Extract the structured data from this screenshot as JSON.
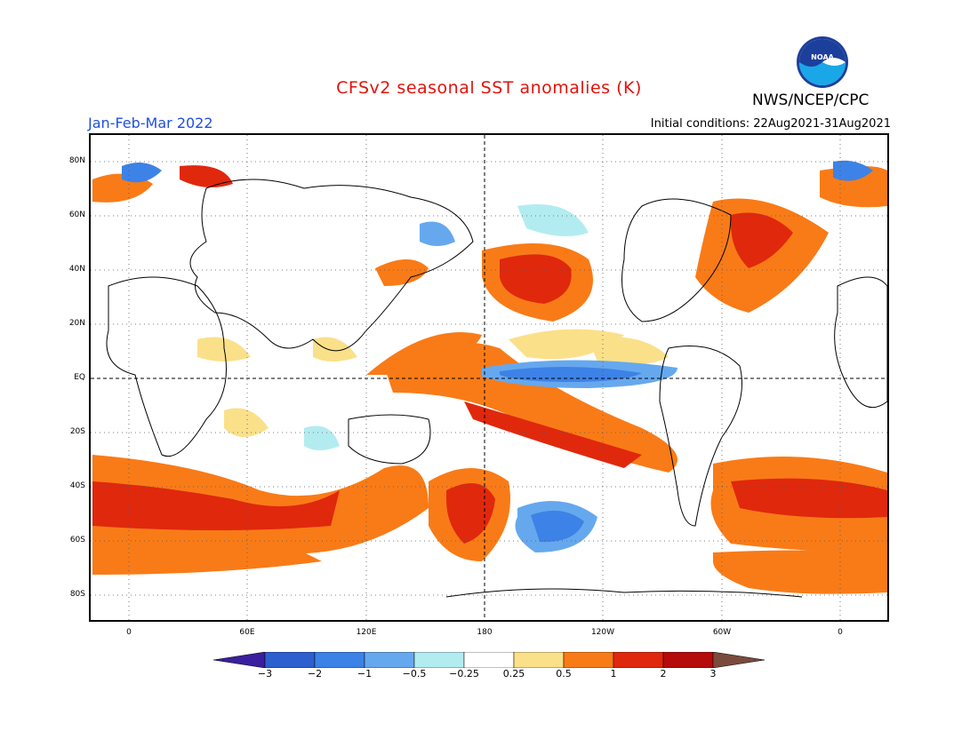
{
  "header": {
    "title": "CFSv2 seasonal SST anomalies (K)",
    "agency": "NWS/NCEP/CPC",
    "logo_text": "NOAA",
    "period": "Jan-Feb-Mar 2022",
    "initial_conditions": "Initial conditions: 22Aug2021-31Aug2021"
  },
  "axes": {
    "lat_labels": [
      "80N",
      "60N",
      "40N",
      "20N",
      "EQ",
      "20S",
      "40S",
      "60S",
      "80S"
    ],
    "lon_labels": [
      "0",
      "60E",
      "120E",
      "180",
      "120W",
      "60W",
      "0"
    ]
  },
  "colorbar": {
    "labels": [
      "−3",
      "−2",
      "−1",
      "−0.5",
      "−0.25",
      "0.25",
      "0.5",
      "1",
      "2",
      "3"
    ],
    "colors": [
      "#3a1f9e",
      "#2d5fcf",
      "#3d82e6",
      "#66a8ee",
      "#b3ecf0",
      "#ffffff",
      "#fbe08a",
      "#f97b17",
      "#e0280d",
      "#b50b0b",
      "#7a4a3c"
    ]
  }
}
